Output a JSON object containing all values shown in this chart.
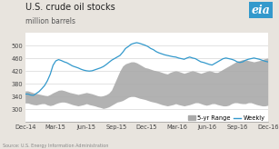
{
  "title": "U.S. crude oil stocks",
  "ylabel": "million barrels",
  "ylim": [
    260,
    540
  ],
  "yticks": [
    300,
    340,
    380,
    420,
    460,
    500
  ],
  "xtick_labels": [
    "Dec-14",
    "Mar-15",
    "Jun-15",
    "Sep-15",
    "Dec-15",
    "Mar-16",
    "Jun-16",
    "Sep-16",
    "Dec-16"
  ],
  "background_color": "#e8e4de",
  "plot_bg_color": "#ffffff",
  "weekly_color": "#3399cc",
  "range_color": "#aaaaaa",
  "title_fontsize": 7.0,
  "ylabel_fontsize": 5.5,
  "tick_fontsize": 4.8,
  "legend_fontsize": 4.8,
  "source_text": "Source: U.S. Energy Information Administration",
  "weekly_line": [
    348,
    348,
    345,
    344,
    350,
    356,
    365,
    375,
    390,
    410,
    438,
    452,
    456,
    453,
    449,
    446,
    441,
    436,
    433,
    430,
    426,
    423,
    421,
    420,
    421,
    424,
    427,
    430,
    434,
    440,
    447,
    454,
    459,
    464,
    469,
    479,
    491,
    497,
    504,
    507,
    509,
    507,
    504,
    501,
    497,
    491,
    487,
    481,
    477,
    474,
    471,
    469,
    467,
    465,
    464,
    461,
    459,
    457,
    461,
    464,
    461,
    459,
    454,
    449,
    447,
    444,
    441,
    439,
    444,
    449,
    454,
    459,
    461,
    459,
    457,
    454,
    449,
    447,
    449,
    454,
    457,
    459,
    461,
    459,
    457,
    454,
    451,
    449
  ],
  "range_upper": [
    358,
    358,
    355,
    352,
    350,
    348,
    346,
    344,
    343,
    347,
    352,
    356,
    360,
    361,
    359,
    356,
    353,
    351,
    349,
    347,
    349,
    351,
    353,
    351,
    349,
    346,
    343,
    341,
    343,
    346,
    351,
    361,
    381,
    401,
    421,
    436,
    443,
    446,
    449,
    449,
    446,
    441,
    436,
    431,
    429,
    426,
    423,
    421,
    419,
    416,
    413,
    411,
    416,
    419,
    421,
    419,
    416,
    413,
    416,
    419,
    421,
    419,
    416,
    413,
    416,
    419,
    421,
    419,
    416,
    416,
    421,
    426,
    431,
    436,
    441,
    446,
    451,
    453,
    456,
    456,
    453,
    451,
    449,
    451,
    453,
    456,
    459,
    461
  ],
  "range_lower": [
    320,
    320,
    317,
    315,
    314,
    316,
    318,
    318,
    314,
    312,
    314,
    318,
    321,
    323,
    323,
    321,
    318,
    315,
    313,
    311,
    313,
    315,
    318,
    315,
    313,
    311,
    308,
    306,
    303,
    305,
    308,
    313,
    318,
    323,
    325,
    328,
    333,
    338,
    341,
    341,
    338,
    335,
    333,
    331,
    328,
    325,
    323,
    321,
    318,
    315,
    313,
    311,
    313,
    315,
    318,
    315,
    313,
    311,
    313,
    315,
    318,
    321,
    321,
    318,
    315,
    313,
    315,
    318,
    318,
    315,
    313,
    311,
    311,
    313,
    318,
    321,
    321,
    319,
    318,
    318,
    321,
    321,
    318,
    315,
    313,
    311,
    311,
    313
  ]
}
